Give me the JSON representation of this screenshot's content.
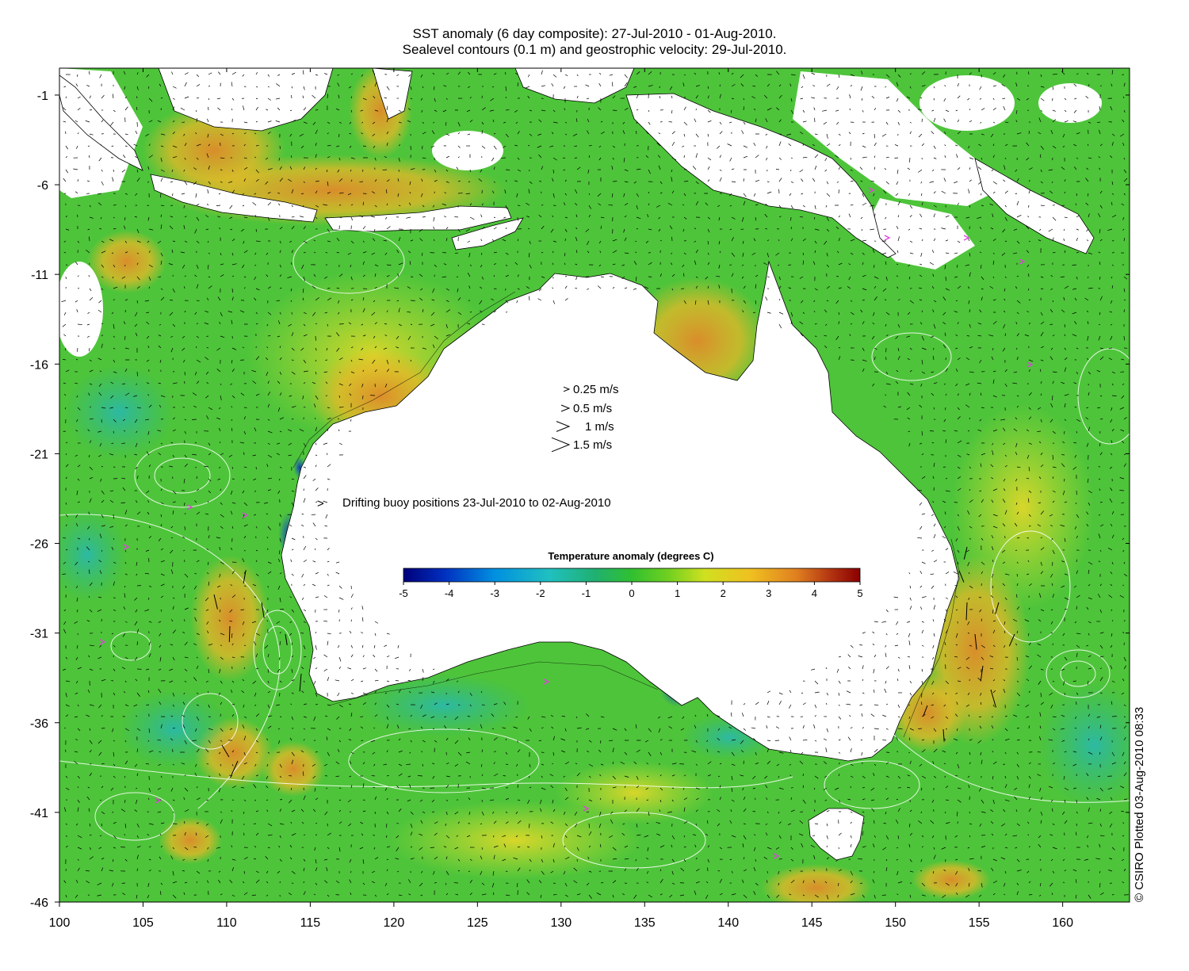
{
  "title": {
    "line1": "SST anomaly (6 day composite): 27-Jul-2010 - 01-Aug-2010.",
    "line2": "Sealevel contours (0.1 m) and geostrophic velocity: 29-Jul-2010."
  },
  "axes": {
    "x_ticks": [
      "100",
      "105",
      "110",
      "115",
      "120",
      "125",
      "130",
      "135",
      "140",
      "145",
      "150",
      "155",
      "160"
    ],
    "x_values": [
      100,
      105,
      110,
      115,
      120,
      125,
      130,
      135,
      140,
      145,
      150,
      155,
      160
    ],
    "y_ticks": [
      "-1",
      "-6",
      "-11",
      "-16",
      "-21",
      "-26",
      "-31",
      "-36",
      "-41",
      "-46"
    ],
    "y_values": [
      -1,
      -6,
      -11,
      -16,
      -21,
      -26,
      -31,
      -36,
      -41,
      -46
    ],
    "lon_range": [
      100,
      164
    ],
    "lat_range": [
      -46,
      0.5
    ]
  },
  "velocity_legend": [
    {
      "label": "0.25 m/s",
      "speed": 0.25
    },
    {
      "label": "0.5 m/s",
      "speed": 0.5
    },
    {
      "label": "1 m/s",
      "speed": 1
    },
    {
      "label": "1.5 m/s",
      "speed": 1.5
    }
  ],
  "buoy_legend": {
    "symbol": ">",
    "label": "Drifting buoy positions 23-Jul-2010 to 02-Aug-2010",
    "color": "#e040e0"
  },
  "colorbar": {
    "title": "Temperature anomaly (degrees C)",
    "ticks": [
      "-5",
      "-4",
      "-3",
      "-2",
      "-1",
      "0",
      "1",
      "2",
      "3",
      "4",
      "5"
    ],
    "range": [
      -5,
      5
    ],
    "colors": [
      "#00007a",
      "#0030c0",
      "#0090e0",
      "#20c0c0",
      "#20b070",
      "#30c030",
      "#70d020",
      "#d0e020",
      "#f0c020",
      "#e08020",
      "#b03010",
      "#8a0000"
    ]
  },
  "credit": "© CSIRO Plotted 03-Aug-2010 08:33",
  "colors": {
    "ocean": "#4ec43a",
    "ocean_warm": "#e8b828",
    "ocean_hot": "#e08a2a",
    "ocean_cool": "#2cbaa0",
    "land": "#ffffff",
    "cloud_mask": "#ffffff",
    "contour": "#ffffff",
    "arrow": "#000000"
  }
}
